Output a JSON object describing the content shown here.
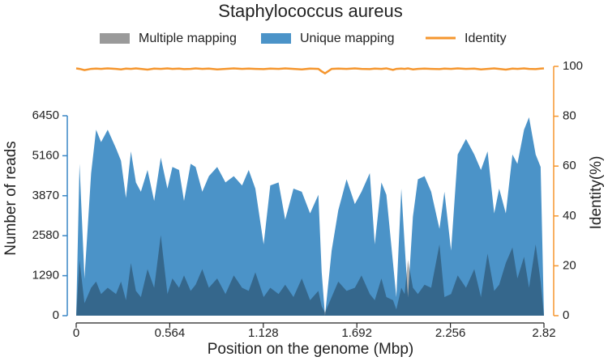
{
  "chart_data": {
    "type": "area",
    "title": "Staphylococcus aureus",
    "xlabel": "Position on the genome (Mbp)",
    "ylabel": "Number of reads",
    "y2label": "Identity(%)",
    "x": [
      0,
      0.02,
      0.05,
      0.09,
      0.12,
      0.15,
      0.19,
      0.24,
      0.27,
      0.3,
      0.33,
      0.36,
      0.39,
      0.43,
      0.47,
      0.51,
      0.55,
      0.58,
      0.62,
      0.65,
      0.69,
      0.72,
      0.76,
      0.8,
      0.85,
      0.9,
      0.95,
      1.0,
      1.04,
      1.08,
      1.13,
      1.17,
      1.22,
      1.26,
      1.31,
      1.36,
      1.41,
      1.46,
      1.48,
      1.5,
      1.54,
      1.58,
      1.63,
      1.68,
      1.72,
      1.77,
      1.8,
      1.84,
      1.87,
      1.91,
      1.93,
      1.96,
      1.98,
      2.0,
      2.03,
      2.06,
      2.1,
      2.14,
      2.19,
      2.22,
      2.26,
      2.3,
      2.35,
      2.4,
      2.44,
      2.48,
      2.52,
      2.55,
      2.59,
      2.63,
      2.66,
      2.7,
      2.73,
      2.77,
      2.8,
      2.82
    ],
    "series": [
      {
        "name": "Multiple mapping",
        "color": "#9a9a9a",
        "values": [
          0,
          1800,
          400,
          900,
          1100,
          700,
          900,
          700,
          1100,
          500,
          1700,
          800,
          600,
          1500,
          900,
          2600,
          700,
          1200,
          900,
          1300,
          800,
          1000,
          1500,
          900,
          1200,
          700,
          1300,
          900,
          800,
          1400,
          600,
          900,
          700,
          1000,
          600,
          1200,
          500,
          800,
          300,
          100,
          600,
          1100,
          800,
          900,
          1300,
          700,
          500,
          1200,
          600,
          500,
          200,
          900,
          700,
          1800,
          900,
          700,
          1000,
          900,
          2300,
          600,
          700,
          1300,
          900,
          1500,
          600,
          2000,
          800,
          1000,
          1700,
          2200,
          1200,
          1900,
          900,
          2300,
          1100,
          0
        ]
      },
      {
        "name": "Unique mapping",
        "color": "#4b93c8",
        "values": [
          0,
          4900,
          1200,
          4600,
          6000,
          5600,
          6000,
          5400,
          5000,
          3800,
          5300,
          4300,
          4000,
          4700,
          3700,
          5100,
          4100,
          4800,
          4700,
          3700,
          4900,
          4800,
          4000,
          4500,
          4800,
          4300,
          4500,
          4200,
          4700,
          4100,
          2300,
          4200,
          4300,
          3100,
          4100,
          4000,
          3300,
          3900,
          1400,
          0,
          2100,
          3400,
          4400,
          3600,
          4000,
          4600,
          2300,
          4300,
          3900,
          1700,
          600,
          4100,
          2300,
          600,
          3200,
          4400,
          4500,
          4000,
          2800,
          4000,
          2100,
          5200,
          5700,
          5200,
          4700,
          5300,
          3300,
          4100,
          3300,
          5200,
          4900,
          6000,
          6400,
          5200,
          4800,
          0
        ]
      },
      {
        "name": "Identity",
        "color": "#f5962e",
        "axis": "y2",
        "values": [
          99.2,
          99,
          98.5,
          99,
          99.1,
          99,
          99.2,
          99,
          98.8,
          99.1,
          99,
          99.2,
          99,
          98.7,
          99.1,
          99,
          99.2,
          99,
          99.1,
          98.9,
          99,
          99.2,
          99,
          99.1,
          98.8,
          99,
          99.2,
          99,
          99.1,
          99,
          98.9,
          99.1,
          99,
          99.2,
          99,
          98.8,
          99.1,
          99,
          98,
          97.2,
          99,
          99.1,
          99,
          99.2,
          99,
          98.9,
          99.1,
          99,
          99.2,
          98.6,
          99,
          99.1,
          99,
          99.2,
          98.8,
          99,
          99.1,
          99,
          98.9,
          99.1,
          99,
          99.2,
          99,
          99.1,
          98.8,
          99,
          99.2,
          99,
          98.7,
          99.1,
          99,
          99.2,
          99,
          98.9,
          99.1,
          99.2
        ]
      }
    ],
    "xlim": [
      0,
      2.82
    ],
    "xticks": [
      0,
      0.564,
      1.128,
      1.692,
      2.256,
      2.82
    ],
    "ylim": [
      0,
      8043
    ],
    "yticks": [
      0,
      1290,
      2580,
      3870,
      5160,
      6450
    ],
    "y2lim": [
      0,
      100
    ],
    "y2ticks": [
      0,
      20,
      40,
      60,
      80,
      100
    ],
    "ycolor": "#3a87c6",
    "y2color": "#f5962e",
    "legend": "top"
  }
}
